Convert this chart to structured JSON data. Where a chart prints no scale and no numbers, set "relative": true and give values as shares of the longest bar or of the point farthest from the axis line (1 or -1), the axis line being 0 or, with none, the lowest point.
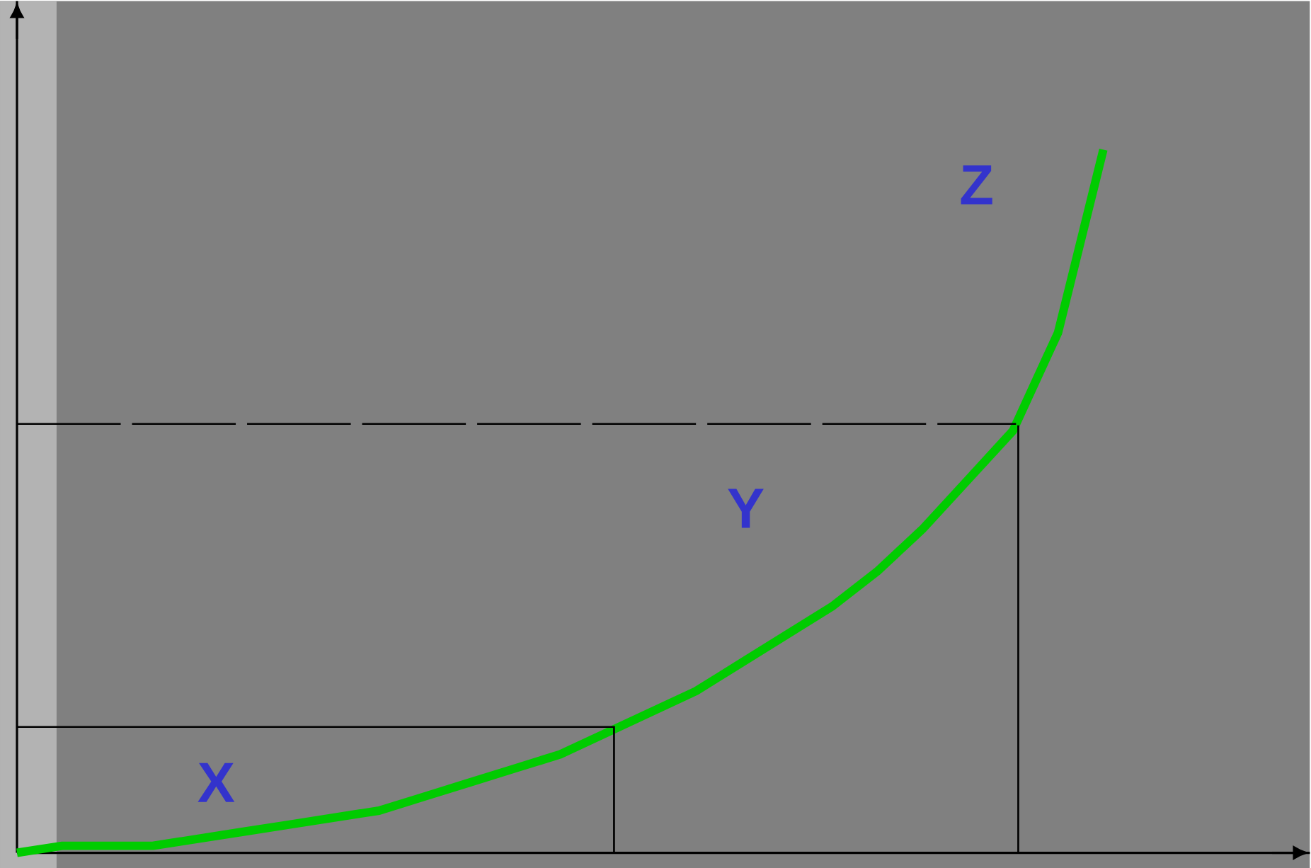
{
  "chart_data": {
    "type": "line",
    "relative": true,
    "categories": [
      null,
      null,
      null,
      null,
      null,
      null,
      null,
      null,
      null,
      null,
      null,
      null,
      null,
      null,
      null,
      null,
      null,
      null,
      null,
      null,
      null,
      null,
      null,
      null,
      null
    ],
    "series": [
      {
        "color": "#00cc00",
        "values": [
          0.0,
          0.01,
          0.01,
          0.01,
          0.02,
          0.03,
          0.04,
          0.05,
          0.06,
          0.08,
          0.1,
          0.12,
          0.14,
          0.17,
          0.2,
          0.23,
          0.27,
          0.31,
          0.35,
          0.4,
          0.46,
          0.53,
          0.6,
          0.74,
          1.0
        ]
      }
    ],
    "ref_lines": [
      {
        "axis": "y",
        "value": 0.61,
        "color": "#000000",
        "line_style": "dashed"
      }
    ],
    "annotations": [
      "X",
      "Y",
      "Z"
    ]
  }
}
